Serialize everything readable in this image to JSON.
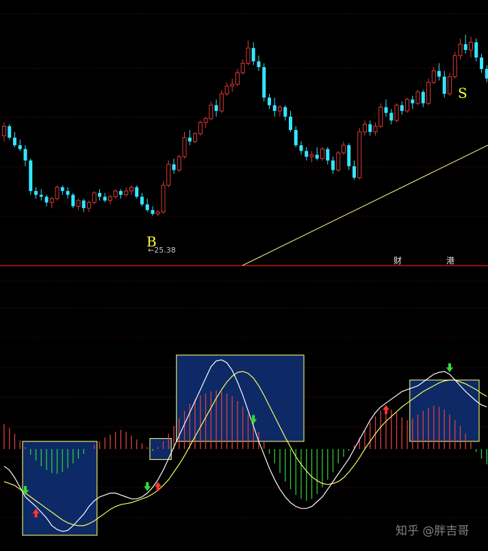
{
  "colors": {
    "background": "#000000",
    "grid_dotted": "#7a1010",
    "divider": "#c81414",
    "candle_up": "#e03a3a",
    "candle_down": "#33e6ff",
    "trendline": "#e6e68a",
    "marker_text": "#ffff33",
    "price_label": "#c8c8c8",
    "event_text": "#e8e8e8",
    "macd_pos": "#e04040",
    "macd_neg": "#2ecc40",
    "dif_line": "#ffffff",
    "dea_line": "#ffff66",
    "box_fill": "#0d2a66",
    "box_border": "#e6e66a",
    "arrow_down": "#33dd33",
    "arrow_up": "#ff3333",
    "watermark": "#9a9a9a"
  },
  "markers": {
    "buy": "B",
    "sell": "S"
  },
  "price_label": "25.38",
  "events": [
    "财",
    "港"
  ],
  "watermark": "知乎 @胖吉哥",
  "chart_data": [
    {
      "type": "candlestick",
      "title": "",
      "ylim": [
        22,
        36
      ],
      "low_label": {
        "value": 25.38
      },
      "candles": [
        [
          29.6,
          30.3,
          29.3,
          30.1
        ],
        [
          30.1,
          30.2,
          29.4,
          29.5
        ],
        [
          29.5,
          29.8,
          29.0,
          29.1
        ],
        [
          29.1,
          29.4,
          28.8,
          28.9
        ],
        [
          28.9,
          29.1,
          28.0,
          28.3
        ],
        [
          28.3,
          28.4,
          26.5,
          26.7
        ],
        [
          26.7,
          26.9,
          26.3,
          26.5
        ],
        [
          26.5,
          26.8,
          26.2,
          26.4
        ],
        [
          26.4,
          26.5,
          25.9,
          26.1
        ],
        [
          26.1,
          26.4,
          25.8,
          26.3
        ],
        [
          26.3,
          27.0,
          26.2,
          26.9
        ],
        [
          26.9,
          27.0,
          26.5,
          26.7
        ],
        [
          26.7,
          26.9,
          26.3,
          26.5
        ],
        [
          26.5,
          26.6,
          25.8,
          25.9
        ],
        [
          25.9,
          26.3,
          25.7,
          26.2
        ],
        [
          26.2,
          26.3,
          25.6,
          25.8
        ],
        [
          25.8,
          26.2,
          25.6,
          26.1
        ],
        [
          26.1,
          26.7,
          26.0,
          26.6
        ],
        [
          26.6,
          26.8,
          26.2,
          26.4
        ],
        [
          26.4,
          26.6,
          26.1,
          26.2
        ],
        [
          26.2,
          26.5,
          26.0,
          26.4
        ],
        [
          26.4,
          26.8,
          26.3,
          26.7
        ],
        [
          26.7,
          26.8,
          26.3,
          26.5
        ],
        [
          26.5,
          26.9,
          26.4,
          26.7
        ],
        [
          26.7,
          27.0,
          26.5,
          26.9
        ],
        [
          26.9,
          27.0,
          26.3,
          26.4
        ],
        [
          26.4,
          26.6,
          25.9,
          26.0
        ],
        [
          26.0,
          26.3,
          25.6,
          25.7
        ],
        [
          25.7,
          25.9,
          25.4,
          25.5
        ],
        [
          25.5,
          25.7,
          25.38,
          25.6
        ],
        [
          25.6,
          27.2,
          25.5,
          27.0
        ],
        [
          27.0,
          28.3,
          26.9,
          28.1
        ],
        [
          28.1,
          28.4,
          27.6,
          27.8
        ],
        [
          27.8,
          28.6,
          27.7,
          28.5
        ],
        [
          28.5,
          29.8,
          28.4,
          29.5
        ],
        [
          29.5,
          29.9,
          29.1,
          29.3
        ],
        [
          29.3,
          29.8,
          29.2,
          29.7
        ],
        [
          29.7,
          30.4,
          29.6,
          30.3
        ],
        [
          30.3,
          30.6,
          30.0,
          30.5
        ],
        [
          30.5,
          31.4,
          30.4,
          31.2
        ],
        [
          31.2,
          31.5,
          30.6,
          30.9
        ],
        [
          30.9,
          32.0,
          30.8,
          31.8
        ],
        [
          31.8,
          32.4,
          31.7,
          32.2
        ],
        [
          32.2,
          32.6,
          31.9,
          32.3
        ],
        [
          32.3,
          33.1,
          32.2,
          32.9
        ],
        [
          32.9,
          33.6,
          32.8,
          33.4
        ],
        [
          33.4,
          34.6,
          33.3,
          34.2
        ],
        [
          34.2,
          34.5,
          33.3,
          33.5
        ],
        [
          33.5,
          33.8,
          33.0,
          33.2
        ],
        [
          33.2,
          33.4,
          31.4,
          31.6
        ],
        [
          31.6,
          31.8,
          31.0,
          31.2
        ],
        [
          31.2,
          31.6,
          30.6,
          30.9
        ],
        [
          30.9,
          31.2,
          30.6,
          31.1
        ],
        [
          31.1,
          31.2,
          30.4,
          30.6
        ],
        [
          30.6,
          30.9,
          29.8,
          29.9
        ],
        [
          29.9,
          30.1,
          29.0,
          29.1
        ],
        [
          29.1,
          29.3,
          28.6,
          28.8
        ],
        [
          28.8,
          29.0,
          28.3,
          28.5
        ],
        [
          28.5,
          28.8,
          28.2,
          28.6
        ],
        [
          28.6,
          29.0,
          28.3,
          28.4
        ],
        [
          28.4,
          29.0,
          28.3,
          28.9
        ],
        [
          28.9,
          29.0,
          28.1,
          28.3
        ],
        [
          28.3,
          28.5,
          27.6,
          27.8
        ],
        [
          27.8,
          28.8,
          27.7,
          28.7
        ],
        [
          28.7,
          29.3,
          28.6,
          29.1
        ],
        [
          29.1,
          29.2,
          27.8,
          28.0
        ],
        [
          28.0,
          28.3,
          27.3,
          27.4
        ],
        [
          27.4,
          30.0,
          27.3,
          29.8
        ],
        [
          29.8,
          30.4,
          29.6,
          30.2
        ],
        [
          30.2,
          30.4,
          29.6,
          29.8
        ],
        [
          29.8,
          30.3,
          29.6,
          30.1
        ],
        [
          30.1,
          31.3,
          30.0,
          31.1
        ],
        [
          31.1,
          31.5,
          30.6,
          30.8
        ],
        [
          30.8,
          31.0,
          30.2,
          30.4
        ],
        [
          30.4,
          31.3,
          30.3,
          31.2
        ],
        [
          31.2,
          31.4,
          30.7,
          30.9
        ],
        [
          30.9,
          31.6,
          30.8,
          31.5
        ],
        [
          31.5,
          31.7,
          31.0,
          31.3
        ],
        [
          31.3,
          32.0,
          31.2,
          31.9
        ],
        [
          31.9,
          32.0,
          31.1,
          31.3
        ],
        [
          31.3,
          32.6,
          31.2,
          32.4
        ],
        [
          32.4,
          33.2,
          32.3,
          33.0
        ],
        [
          33.0,
          33.4,
          32.5,
          32.7
        ],
        [
          32.7,
          33.0,
          31.6,
          31.8
        ],
        [
          31.8,
          32.9,
          31.7,
          32.7
        ],
        [
          32.7,
          34.0,
          32.6,
          33.8
        ],
        [
          33.8,
          34.7,
          33.6,
          34.4
        ],
        [
          34.4,
          34.9,
          33.9,
          34.1
        ],
        [
          34.1,
          34.8,
          33.7,
          34.5
        ],
        [
          34.5,
          34.7,
          33.5,
          33.7
        ],
        [
          33.7,
          33.9,
          32.9,
          33.1
        ],
        [
          33.1,
          33.3,
          32.4,
          32.6
        ],
        [
          32.6,
          32.9,
          32.2,
          32.5
        ]
      ]
    },
    {
      "type": "bar",
      "title": "",
      "ylim": [
        -1,
        1
      ],
      "macd_hist": [
        0.26,
        0.22,
        0.16,
        0.09,
        0.02,
        -0.06,
        -0.12,
        -0.18,
        -0.22,
        -0.25,
        -0.26,
        -0.24,
        -0.2,
        -0.15,
        -0.1,
        -0.05,
        0.0,
        0.04,
        0.08,
        0.12,
        0.15,
        0.18,
        0.2,
        0.18,
        0.14,
        0.1,
        0.06,
        0.02,
        -0.02,
        0.02,
        0.08,
        0.16,
        0.24,
        0.32,
        0.4,
        0.47,
        0.52,
        0.56,
        0.58,
        0.6,
        0.61,
        0.6,
        0.58,
        0.55,
        0.5,
        0.44,
        0.36,
        0.28,
        0.18,
        0.08,
        -0.05,
        -0.15,
        -0.25,
        -0.34,
        -0.42,
        -0.48,
        -0.52,
        -0.54,
        -0.52,
        -0.47,
        -0.4,
        -0.32,
        -0.24,
        -0.15,
        -0.08,
        -0.02,
        0.04,
        0.12,
        0.2,
        0.28,
        0.34,
        0.4,
        0.42,
        0.41,
        0.38,
        0.33,
        0.3,
        0.32,
        0.36,
        0.4,
        0.43,
        0.45,
        0.44,
        0.41,
        0.36,
        0.3,
        0.24,
        0.16,
        0.07,
        -0.03,
        -0.1,
        -0.16
      ],
      "dif": [
        -0.18,
        -0.22,
        -0.3,
        -0.4,
        -0.5,
        -0.55,
        -0.6,
        -0.66,
        -0.72,
        -0.8,
        -0.84,
        -0.86,
        -0.85,
        -0.8,
        -0.74,
        -0.68,
        -0.6,
        -0.54,
        -0.5,
        -0.48,
        -0.46,
        -0.46,
        -0.48,
        -0.5,
        -0.52,
        -0.52,
        -0.5,
        -0.46,
        -0.4,
        -0.32,
        -0.22,
        -0.1,
        0.02,
        0.14,
        0.26,
        0.38,
        0.5,
        0.62,
        0.74,
        0.86,
        0.92,
        0.93,
        0.9,
        0.82,
        0.7,
        0.56,
        0.4,
        0.24,
        0.08,
        -0.06,
        -0.2,
        -0.32,
        -0.42,
        -0.5,
        -0.56,
        -0.6,
        -0.62,
        -0.62,
        -0.6,
        -0.55,
        -0.5,
        -0.42,
        -0.34,
        -0.26,
        -0.18,
        -0.1,
        0.0,
        0.1,
        0.2,
        0.3,
        0.38,
        0.44,
        0.48,
        0.52,
        0.56,
        0.6,
        0.62,
        0.64,
        0.66,
        0.7,
        0.74,
        0.78,
        0.8,
        0.81,
        0.78,
        0.72,
        0.66,
        0.6,
        0.55,
        0.5,
        0.46,
        0.44
      ],
      "dea": [
        -0.34,
        -0.36,
        -0.38,
        -0.42,
        -0.46,
        -0.5,
        -0.54,
        -0.58,
        -0.62,
        -0.66,
        -0.7,
        -0.74,
        -0.77,
        -0.79,
        -0.8,
        -0.8,
        -0.78,
        -0.75,
        -0.71,
        -0.67,
        -0.63,
        -0.6,
        -0.58,
        -0.57,
        -0.56,
        -0.54,
        -0.52,
        -0.5,
        -0.47,
        -0.43,
        -0.38,
        -0.32,
        -0.24,
        -0.16,
        -0.07,
        0.03,
        0.13,
        0.23,
        0.33,
        0.43,
        0.53,
        0.62,
        0.7,
        0.76,
        0.8,
        0.81,
        0.79,
        0.74,
        0.66,
        0.56,
        0.45,
        0.34,
        0.23,
        0.12,
        0.02,
        -0.08,
        -0.16,
        -0.23,
        -0.29,
        -0.33,
        -0.36,
        -0.37,
        -0.36,
        -0.34,
        -0.3,
        -0.24,
        -0.17,
        -0.09,
        0.0,
        0.08,
        0.16,
        0.23,
        0.29,
        0.34,
        0.39,
        0.44,
        0.48,
        0.52,
        0.56,
        0.6,
        0.63,
        0.66,
        0.69,
        0.71,
        0.72,
        0.72,
        0.7,
        0.68,
        0.65,
        0.62,
        0.58,
        0.55
      ],
      "golden_cross_idx": [
        6,
        29,
        72
      ],
      "dead_cross_idx": [
        4,
        27,
        47,
        84
      ],
      "boxes": [
        {
          "from": 4,
          "to": 17,
          "ymin": -0.9,
          "ymax": 0.08
        },
        {
          "from": 28,
          "to": 31,
          "ymin": -0.11,
          "ymax": 0.11
        },
        {
          "from": 33,
          "to": 56,
          "ymin": 0.08,
          "ymax": 0.98
        },
        {
          "from": 77,
          "to": 100,
          "ymin": 0.08,
          "ymax": 0.72
        }
      ]
    }
  ]
}
